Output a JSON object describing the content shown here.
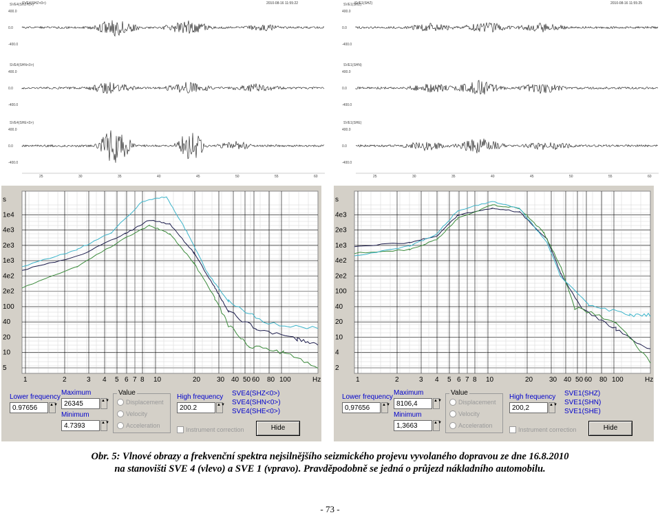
{
  "waveforms": {
    "left": {
      "header_text": "SVE4(SHZ<0>)",
      "header_date": "2010-08-16 11:55:22",
      "channels": [
        "SVE4(SHZ<0>)",
        "SVE4(SHN<0>)",
        "SVE4(SHE<0>)"
      ],
      "amp_labels": [
        "400.0",
        "0.0",
        "-400.0"
      ],
      "time_labels": [
        "25",
        "30",
        "35",
        "40",
        "45",
        "50",
        "55",
        "60"
      ]
    },
    "right": {
      "header_text": "SVE1(SHZ)",
      "header_date": "2010-08-16 11:55:25",
      "channels": [
        "SVE1(SHZ)",
        "SVE1(SHN)",
        "SVE1(SHE)"
      ],
      "amp_labels": [
        "400.0",
        "0.0",
        "-400.0"
      ],
      "time_labels": [
        "25",
        "30",
        "35",
        "40",
        "45",
        "50",
        "55",
        "60"
      ]
    }
  },
  "spectra": {
    "left": {
      "y_ticks": [
        "s",
        "1e4",
        "4e3",
        "2e3",
        "1e3",
        "4e2",
        "2e2",
        "100",
        "40",
        "20",
        "10",
        "5"
      ],
      "x_ticks": [
        "1",
        "2",
        "3",
        "4",
        "5",
        "6",
        "7",
        "8",
        "10",
        "20",
        "30",
        "40",
        "50",
        "60",
        "80",
        "100",
        "Hz"
      ],
      "lower_frequency_label": "Lower frequency",
      "lower_frequency_value": "0.97656",
      "maximum_label": "Maximum",
      "maximum_value": "26345",
      "minimum_label": "Minimum",
      "minimum_value": "4.7393",
      "value_label": "Value",
      "radio_options": [
        "Displacement",
        "Velocity",
        "Acceleration"
      ],
      "high_frequency_label": "High frequency",
      "high_frequency_value": "200.2",
      "instrument_correction_label": "Instrument correction",
      "legend": [
        "SVE4(SHZ<0>)",
        "SVE4(SHN<0>)",
        "SVE4(SHE<0>)"
      ],
      "hide_label": "Hide"
    },
    "right": {
      "y_ticks": [
        "s",
        "4e3",
        "2e3",
        "1e3",
        "4e2",
        "2e2",
        "100",
        "40",
        "20",
        "10",
        "4",
        "2"
      ],
      "x_ticks": [
        "1",
        "2",
        "3",
        "4",
        "5",
        "6",
        "7",
        "8",
        "10",
        "20",
        "30",
        "40",
        "50",
        "60",
        "80",
        "100",
        "Hz"
      ],
      "lower_frequency_label": "Lower frequency",
      "lower_frequency_value": "0,97656",
      "maximum_label": "Maximum",
      "maximum_value": "8106,4",
      "minimum_label": "Minimum",
      "minimum_value": "1,3663",
      "value_label": "Value",
      "radio_options": [
        "Displacement",
        "Velocity",
        "Acceleration"
      ],
      "high_frequency_label": "High frequency",
      "high_frequency_value": "200,2",
      "instrument_correction_label": "Instrument correction",
      "legend": [
        "SVE1(SHZ)",
        "SVE1(SHN)",
        "SVE1(SHE)"
      ],
      "hide_label": "Hide"
    },
    "series_colors": {
      "Z": "#1a1a4a",
      "N": "#3a8a3a",
      "E": "#39b3c9"
    }
  },
  "caption": {
    "line1": "Obr. 5: Vlnové obrazy a frekvenční spektra nejsilnějšího seizmického projevu vyvolaného dopravou ze dne 16.8.2010",
    "line2": "na stanovišti  SVE 4 (vlevo) a SVE 1 (vpravo). Pravděpodobně se jedná o průjezd nákladního automobilu."
  },
  "page_number": "- 73 -"
}
